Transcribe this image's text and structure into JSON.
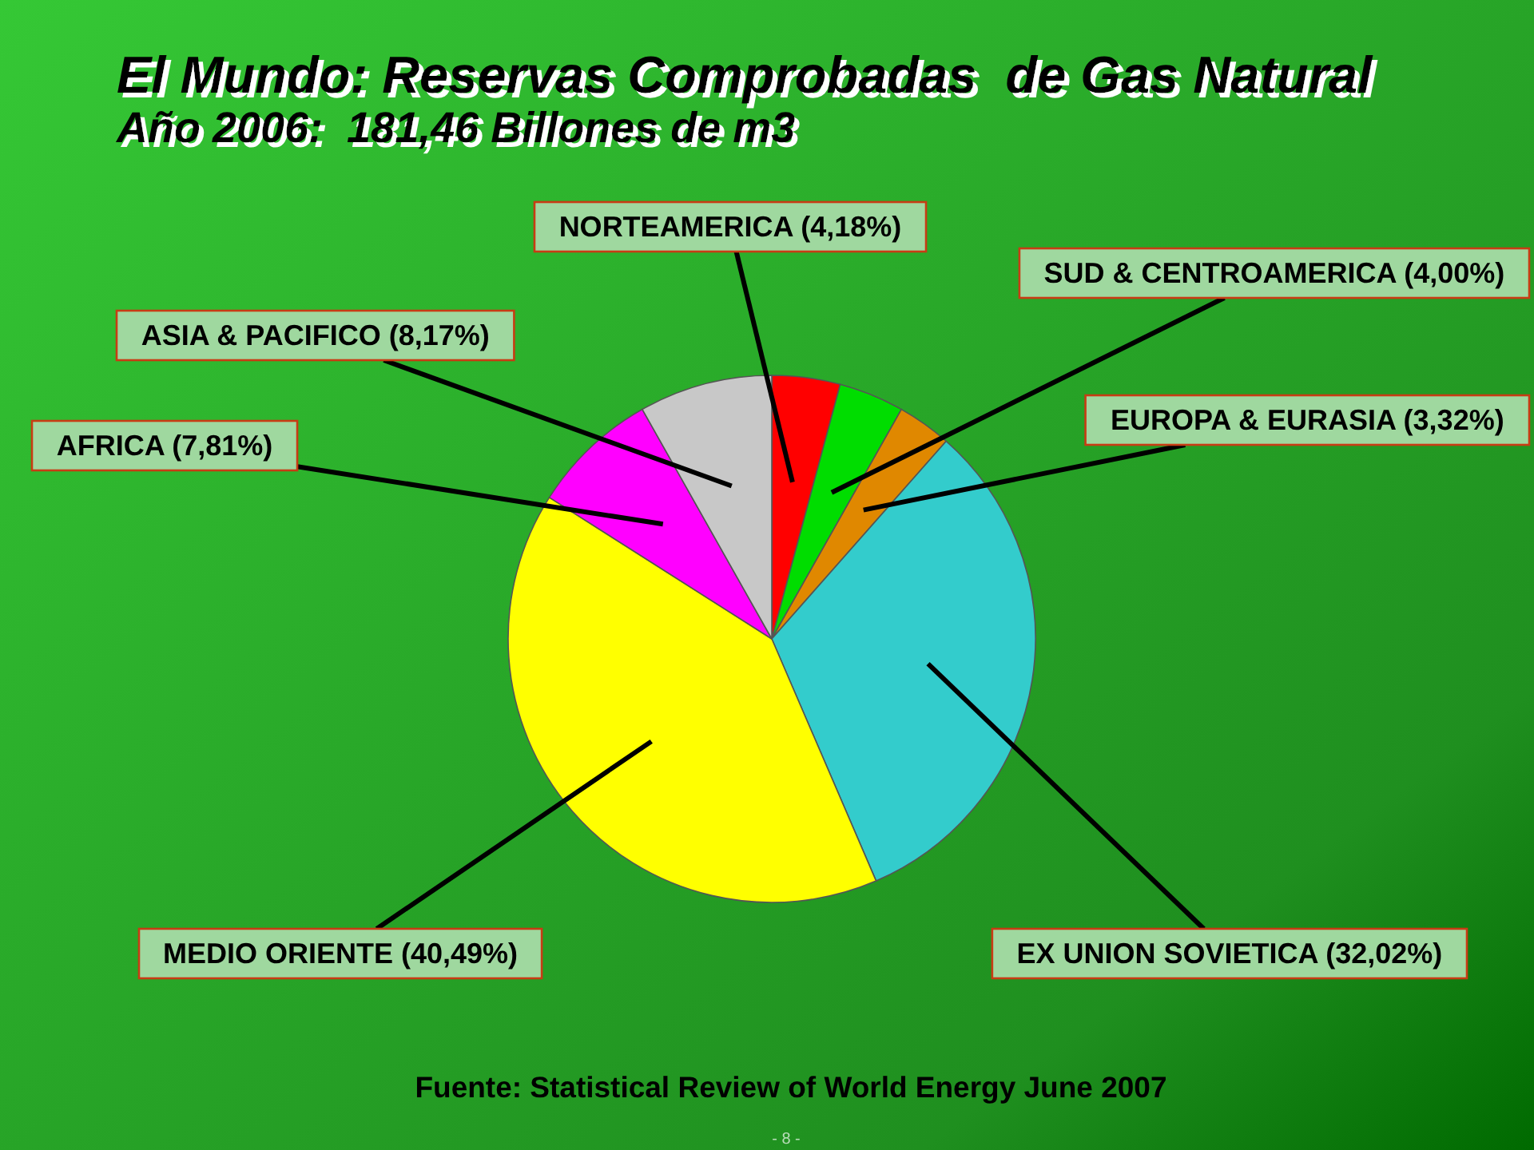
{
  "chart_data": {
    "type": "pie",
    "title": "El Mundo: Reservas Comprobadas  de Gas Natural",
    "subtitle": "Año 2006:  181,46 Billones de m3",
    "categories": [
      "NORTEAMERICA",
      "SUD & CENTROAMERICA",
      "EUROPA & EURASIA",
      "EX UNION SOVIETICA",
      "MEDIO ORIENTE",
      "AFRICA",
      "ASIA & PACIFICO"
    ],
    "values": [
      4.18,
      4.0,
      3.32,
      32.02,
      40.49,
      7.81,
      8.17
    ],
    "value_labels": [
      "(4,18%)",
      "(4,00%)",
      "(3,32%)",
      "(32,02%)",
      "(40,49%)",
      "(7,81%)",
      "(8,17%)"
    ],
    "colors": [
      "#ff0000",
      "#00dd00",
      "#e08800",
      "#33cccc",
      "#ffff00",
      "#ff00ff",
      "#c8c8c8"
    ],
    "annotations": [
      "Fuente: Statistical Review of World Energy June 2007",
      "- 8 -"
    ]
  }
}
